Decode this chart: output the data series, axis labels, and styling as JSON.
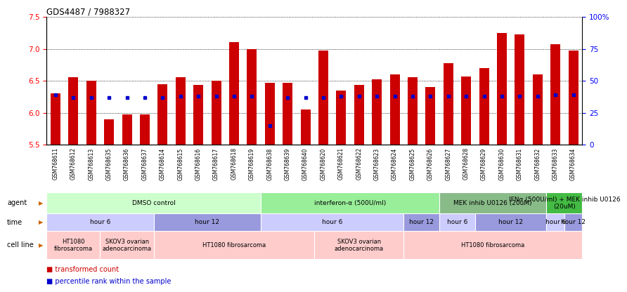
{
  "title": "GDS4487 / 7988327",
  "samples": [
    "GSM768611",
    "GSM768612",
    "GSM768613",
    "GSM768635",
    "GSM768636",
    "GSM768637",
    "GSM768614",
    "GSM768615",
    "GSM768616",
    "GSM768617",
    "GSM768618",
    "GSM768619",
    "GSM768638",
    "GSM768639",
    "GSM768640",
    "GSM768620",
    "GSM768621",
    "GSM768622",
    "GSM768623",
    "GSM768624",
    "GSM768625",
    "GSM768626",
    "GSM768627",
    "GSM768628",
    "GSM768629",
    "GSM768630",
    "GSM768631",
    "GSM768632",
    "GSM768633",
    "GSM768634"
  ],
  "transformed_count": [
    6.3,
    6.55,
    6.5,
    5.9,
    5.97,
    5.97,
    6.45,
    6.55,
    6.43,
    6.5,
    7.1,
    7.0,
    6.47,
    6.47,
    6.05,
    6.97,
    6.35,
    6.43,
    6.52,
    6.6,
    6.55,
    6.4,
    6.78,
    6.57,
    6.7,
    7.25,
    7.22,
    6.6,
    7.07,
    6.97
  ],
  "percentile_rank": [
    39,
    37,
    37,
    37,
    37,
    37,
    37,
    38,
    38,
    38,
    38,
    38,
    15,
    37,
    37,
    37,
    38,
    38,
    38,
    38,
    38,
    38,
    38,
    38,
    38,
    38,
    38,
    38,
    39,
    39
  ],
  "ylim_left": [
    5.5,
    7.5
  ],
  "ylim_right": [
    0,
    100
  ],
  "yticks_left": [
    5.5,
    6.0,
    6.5,
    7.0,
    7.5
  ],
  "yticks_right_vals": [
    0,
    25,
    50,
    75,
    100
  ],
  "yticks_right_labels": [
    "0",
    "25",
    "50",
    "75",
    "100%"
  ],
  "bar_color": "#CC0000",
  "dot_color": "#0000CC",
  "bar_bottom": 5.5,
  "agent_labels": [
    {
      "text": "DMSO control",
      "start": 0,
      "end": 11,
      "color": "#CCFFCC"
    },
    {
      "text": "interferon-α (500U/ml)",
      "start": 12,
      "end": 21,
      "color": "#99EE99"
    },
    {
      "text": "MEK inhib U0126 (20uM)",
      "start": 22,
      "end": 27,
      "color": "#88BB88"
    },
    {
      "text": "IFNα (500U/ml) + MEK inhib U0126\n(20uM)",
      "start": 28,
      "end": 29,
      "color": "#44BB44"
    }
  ],
  "time_labels": [
    {
      "text": "hour 6",
      "start": 0,
      "end": 5,
      "color": "#CCCCFF"
    },
    {
      "text": "hour 12",
      "start": 6,
      "end": 11,
      "color": "#9999DD"
    },
    {
      "text": "hour 6",
      "start": 12,
      "end": 19,
      "color": "#CCCCFF"
    },
    {
      "text": "hour 12",
      "start": 20,
      "end": 21,
      "color": "#9999DD"
    },
    {
      "text": "hour 6",
      "start": 22,
      "end": 23,
      "color": "#CCCCFF"
    },
    {
      "text": "hour 12",
      "start": 24,
      "end": 27,
      "color": "#9999DD"
    },
    {
      "text": "hour 6",
      "start": 28,
      "end": 28,
      "color": "#CCCCFF"
    },
    {
      "text": "hour 12",
      "start": 29,
      "end": 29,
      "color": "#9999DD"
    }
  ],
  "cell_labels": [
    {
      "text": "HT1080\nfibrosarcoma",
      "start": 0,
      "end": 2,
      "color": "#FFCCCC"
    },
    {
      "text": "SKOV3 ovarian\nadenocarcinoma",
      "start": 3,
      "end": 5,
      "color": "#FFCCCC"
    },
    {
      "text": "HT1080 fibrosarcoma",
      "start": 6,
      "end": 14,
      "color": "#FFCCCC"
    },
    {
      "text": "SKOV3 ovarian\nadenocarcinoma",
      "start": 15,
      "end": 19,
      "color": "#FFCCCC"
    },
    {
      "text": "HT1080 fibrosarcoma",
      "start": 20,
      "end": 29,
      "color": "#FFCCCC"
    }
  ],
  "legend": [
    {
      "color": "#CC0000",
      "label": "transformed count"
    },
    {
      "color": "#0000CC",
      "label": "percentile rank within the sample"
    }
  ],
  "row_labels": [
    "agent",
    "time",
    "cell line"
  ],
  "arrow_color": "#CC6600"
}
